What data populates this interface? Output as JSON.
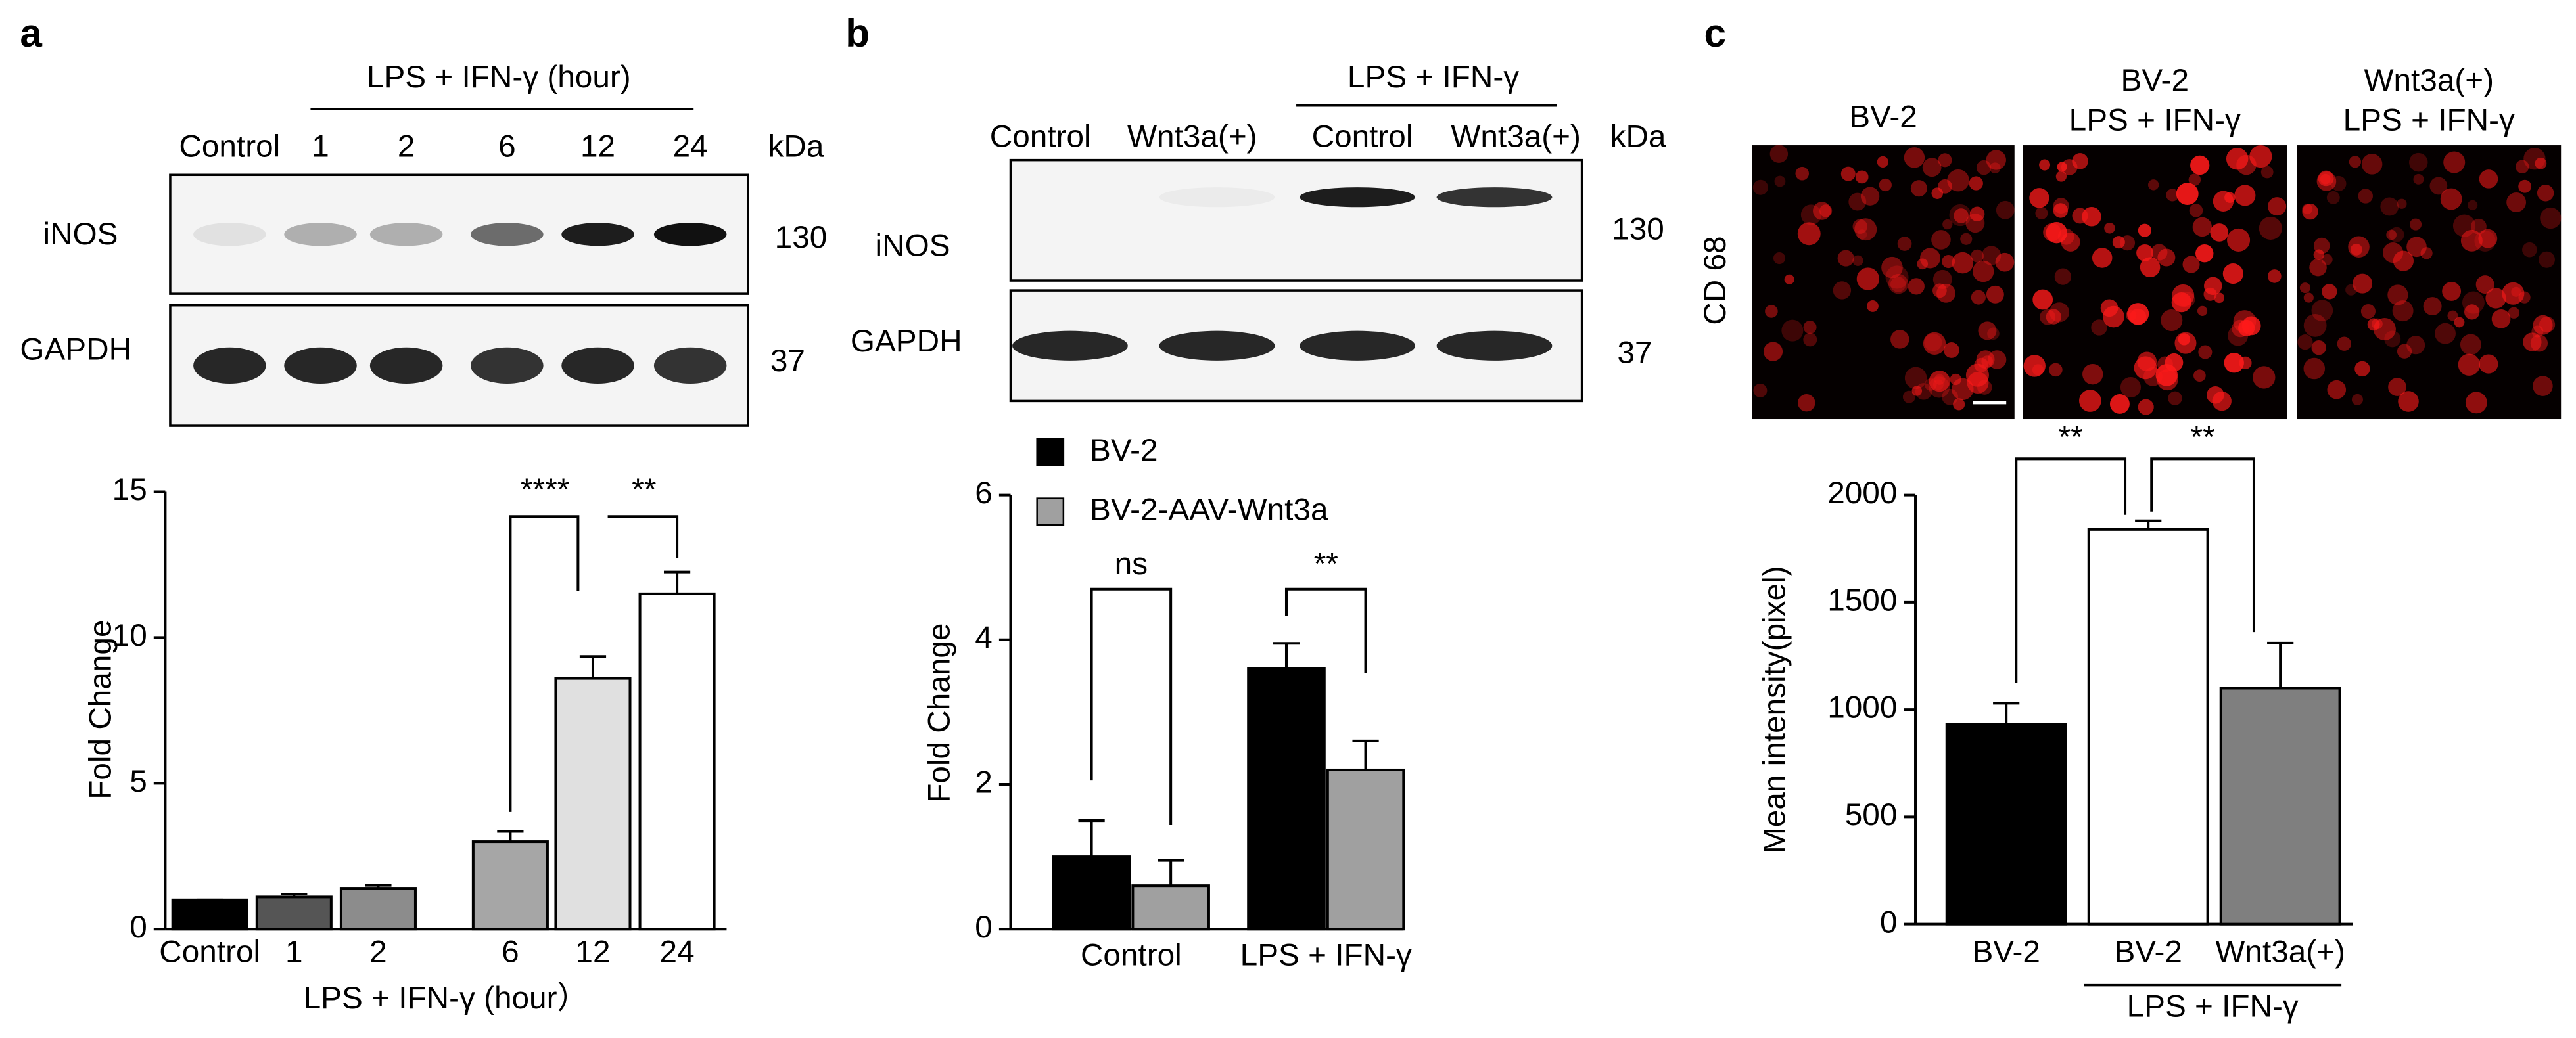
{
  "panels": [
    {
      "letter": "a",
      "blot": {
        "header": "LPS + IFN-γ (hour)",
        "lanes": [
          "Control",
          "1",
          "2",
          "6",
          "12",
          "24"
        ],
        "unit": "kDa",
        "rows": [
          {
            "label": "iNOS",
            "size": "130"
          },
          {
            "label": "GAPDH",
            "size": "37"
          }
        ]
      }
    },
    {
      "letter": "b",
      "blot": {
        "header": "LPS + IFN-γ",
        "lanes": [
          "Control",
          "Wnt3a(+)",
          "Control",
          "Wnt3a(+)"
        ],
        "unit": "kDa",
        "rows": [
          {
            "label": "iNOS",
            "size": "130"
          },
          {
            "label": "GAPDH",
            "size": "37"
          }
        ]
      }
    },
    {
      "letter": "c",
      "images": {
        "stain": "CD 68",
        "titles": [
          [
            "BV-2"
          ],
          [
            "BV-2",
            "LPS + IFN-γ"
          ],
          [
            "Wnt3a(+)",
            "LPS + IFN-γ"
          ]
        ]
      }
    }
  ],
  "chart_data": [
    {
      "type": "bar",
      "categories": [
        "Control",
        "1",
        "2",
        "6",
        "12",
        "24"
      ],
      "values": [
        1,
        1.1,
        1.4,
        3,
        8.6,
        11.5
      ],
      "errors": [
        0,
        0.1,
        0.1,
        0.35,
        0.75,
        0.75
      ],
      "colors": [
        "#000000",
        "#555555",
        "#8c8c8c",
        "#a6a6a6",
        "#e0e0e0",
        "#ffffff"
      ],
      "xlabel": "LPS + IFN-γ (hour）",
      "ylabel": "Fold Change",
      "ylim": [
        0,
        15
      ],
      "yticks": [
        0,
        5,
        10,
        15
      ],
      "annotations": [
        "****",
        "**"
      ]
    },
    {
      "type": "grouped_bar",
      "categories": [
        "Control",
        "LPS + IFN-γ"
      ],
      "series": [
        {
          "name": "BV-2",
          "color": "#000000",
          "values": [
            1,
            3.6
          ],
          "errors": [
            0.5,
            0.35
          ]
        },
        {
          "name": "BV-2-AAV-Wnt3a",
          "color": "#a0a0a0",
          "values": [
            0.6,
            2.2
          ],
          "errors": [
            0.35,
            0.4
          ]
        }
      ],
      "ylabel": "Fold Change",
      "ylim": [
        0,
        6
      ],
      "yticks": [
        0,
        2,
        4,
        6
      ],
      "annotations": [
        "ns",
        "**"
      ]
    },
    {
      "type": "bar",
      "categories": [
        "BV-2",
        "BV-2",
        "Wnt3a(+)"
      ],
      "group_label": "LPS + IFN-γ",
      "values": [
        930,
        1840,
        1100
      ],
      "errors": [
        100,
        40,
        210
      ],
      "colors": [
        "#000000",
        "#ffffff",
        "#7f7f7f"
      ],
      "ylabel": "Mean intensity(pixel)",
      "ylim": [
        0,
        2000
      ],
      "yticks": [
        0,
        500,
        1000,
        1500,
        2000
      ],
      "annotations": [
        "**",
        "**"
      ]
    }
  ]
}
